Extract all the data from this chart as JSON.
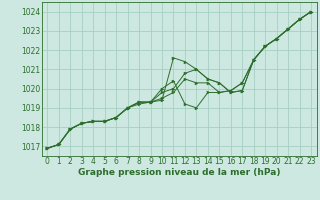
{
  "title": "Graphe pression niveau de la mer (hPa)",
  "bg_color": "#cce8e0",
  "grid_color": "#a8cec4",
  "line_color": "#2d6e2d",
  "marker_color": "#2d6e2d",
  "xlim": [
    -0.5,
    23.5
  ],
  "ylim": [
    1016.5,
    1024.5
  ],
  "yticks": [
    1017,
    1018,
    1019,
    1020,
    1021,
    1022,
    1023,
    1024
  ],
  "xticks": [
    0,
    1,
    2,
    3,
    4,
    5,
    6,
    7,
    8,
    9,
    10,
    11,
    12,
    13,
    14,
    15,
    16,
    17,
    18,
    19,
    20,
    21,
    22,
    23
  ],
  "series": [
    [
      1016.9,
      1017.1,
      1017.9,
      1018.2,
      1018.3,
      1018.3,
      1018.5,
      1019.0,
      1019.2,
      1019.3,
      1019.4,
      1021.6,
      1021.4,
      1021.0,
      1020.5,
      1020.3,
      1019.8,
      1019.9,
      1021.5,
      1022.2,
      1022.6,
      1023.1,
      1023.6,
      1024.0
    ],
    [
      1016.9,
      1017.1,
      1017.9,
      1018.2,
      1018.3,
      1018.3,
      1018.5,
      1019.0,
      1019.3,
      1019.3,
      1019.5,
      1019.8,
      1020.5,
      1020.3,
      1020.3,
      1019.8,
      1019.9,
      1020.3,
      1021.5,
      1022.2,
      1022.6,
      1023.1,
      1023.6,
      1024.0
    ],
    [
      1016.9,
      1017.1,
      1017.9,
      1018.2,
      1018.3,
      1018.3,
      1018.5,
      1019.0,
      1019.3,
      1019.3,
      1019.8,
      1020.0,
      1020.8,
      1021.0,
      1020.5,
      1020.3,
      1019.8,
      1019.9,
      1021.5,
      1022.2,
      1022.6,
      1023.1,
      1023.6,
      1024.0
    ],
    [
      1016.9,
      1017.1,
      1017.9,
      1018.2,
      1018.3,
      1018.3,
      1018.5,
      1019.0,
      1019.3,
      1019.3,
      1020.0,
      1020.4,
      1019.2,
      1019.0,
      1019.8,
      1019.8,
      1019.9,
      1020.3,
      1021.5,
      1022.2,
      1022.6,
      1023.1,
      1023.6,
      1024.0
    ]
  ],
  "title_fontsize": 6.5,
  "tick_fontsize": 5.5
}
